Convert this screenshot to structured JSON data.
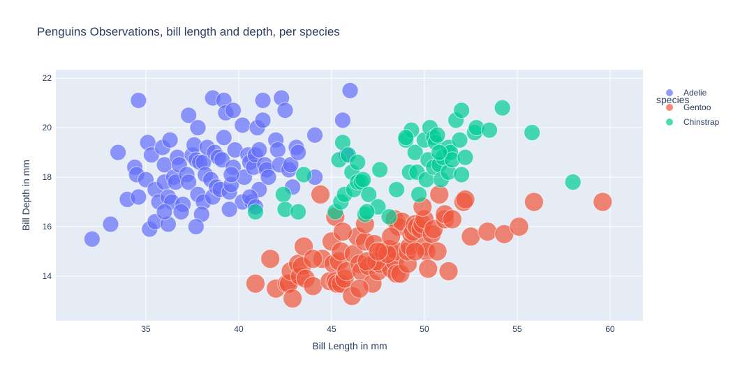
{
  "chart_data": {
    "type": "scatter",
    "title": "Penguins Observations, bill length and depth, per species",
    "xlabel": "Bill Length in mm",
    "ylabel": "Bill Depth in mm",
    "xlim": [
      30.15,
      61.77
    ],
    "ylim": [
      12.2,
      22.34
    ],
    "xticks": [
      35,
      40,
      45,
      50,
      55,
      60
    ],
    "yticks": [
      14,
      16,
      18,
      20,
      22
    ],
    "grid": true,
    "legend_title": "species",
    "legend_position": "right",
    "plot_bg": "#e5ecf6",
    "series": [
      {
        "name": "Adelie",
        "color": "#636efa",
        "typical_size": 3700,
        "points": [
          [
            32.1,
            15.5
          ],
          [
            33.1,
            16.1
          ],
          [
            33.5,
            19.0
          ],
          [
            34.0,
            17.1
          ],
          [
            34.4,
            18.4
          ],
          [
            34.5,
            18.1
          ],
          [
            34.6,
            21.1
          ],
          [
            34.6,
            17.2
          ],
          [
            35.0,
            17.9
          ],
          [
            35.1,
            19.4
          ],
          [
            35.2,
            15.9
          ],
          [
            35.3,
            18.9
          ],
          [
            35.5,
            16.2
          ],
          [
            35.5,
            17.5
          ],
          [
            35.7,
            17.0
          ],
          [
            35.9,
            19.2
          ],
          [
            36.0,
            18.5
          ],
          [
            36.0,
            17.8
          ],
          [
            36.2,
            16.1
          ],
          [
            36.2,
            17.2
          ],
          [
            36.3,
            19.5
          ],
          [
            36.4,
            17.0
          ],
          [
            36.5,
            18.0
          ],
          [
            36.6,
            17.8
          ],
          [
            36.7,
            18.8
          ],
          [
            36.8,
            18.5
          ],
          [
            37.0,
            16.9
          ],
          [
            37.2,
            18.1
          ],
          [
            37.3,
            20.5
          ],
          [
            37.3,
            17.8
          ],
          [
            37.5,
            18.9
          ],
          [
            37.6,
            19.3
          ],
          [
            37.7,
            18.7
          ],
          [
            37.8,
            17.3
          ],
          [
            37.8,
            20.0
          ],
          [
            37.9,
            18.6
          ],
          [
            38.1,
            18.6
          ],
          [
            38.1,
            17.0
          ],
          [
            38.2,
            18.1
          ],
          [
            38.3,
            19.2
          ],
          [
            38.5,
            17.9
          ],
          [
            38.6,
            21.2
          ],
          [
            38.6,
            17.2
          ],
          [
            38.7,
            19.0
          ],
          [
            38.8,
            17.6
          ],
          [
            38.9,
            18.8
          ],
          [
            39.0,
            17.5
          ],
          [
            39.1,
            18.7
          ],
          [
            39.2,
            19.6
          ],
          [
            39.2,
            21.1
          ],
          [
            39.3,
            20.6
          ],
          [
            39.5,
            17.4
          ],
          [
            39.6,
            17.7
          ],
          [
            39.7,
            18.4
          ],
          [
            39.7,
            20.7
          ],
          [
            39.8,
            19.1
          ],
          [
            40.2,
            17.0
          ],
          [
            40.2,
            20.1
          ],
          [
            40.3,
            18.0
          ],
          [
            40.5,
            18.9
          ],
          [
            40.6,
            18.6
          ],
          [
            40.7,
            17.0
          ],
          [
            40.8,
            18.4
          ],
          [
            40.9,
            18.9
          ],
          [
            41.0,
            20.0
          ],
          [
            41.1,
            19.1
          ],
          [
            41.1,
            17.5
          ],
          [
            41.3,
            21.1
          ],
          [
            41.3,
            20.3
          ],
          [
            41.4,
            18.5
          ],
          [
            41.5,
            18.3
          ],
          [
            41.6,
            18.0
          ],
          [
            42.0,
            19.5
          ],
          [
            42.1,
            19.1
          ],
          [
            42.2,
            18.5
          ],
          [
            42.3,
            21.2
          ],
          [
            42.5,
            20.7
          ],
          [
            42.7,
            18.3
          ],
          [
            42.8,
            18.5
          ],
          [
            42.9,
            17.6
          ],
          [
            43.1,
            19.2
          ],
          [
            43.2,
            19.0
          ],
          [
            44.1,
            19.7
          ],
          [
            44.1,
            18.0
          ],
          [
            45.8,
            18.9
          ],
          [
            46.0,
            21.5
          ],
          [
            45.6,
            20.3
          ],
          [
            36.9,
            16.6
          ],
          [
            38.0,
            16.5
          ],
          [
            40.6,
            17.2
          ],
          [
            39.6,
            18.1
          ],
          [
            36.0,
            16.6
          ],
          [
            37.7,
            16.0
          ],
          [
            39.5,
            16.7
          ],
          [
            40.9,
            16.8
          ]
        ]
      },
      {
        "name": "Gentoo",
        "color": "#ef553b",
        "typical_size": 5100,
        "points": [
          [
            40.9,
            13.7
          ],
          [
            41.7,
            14.7
          ],
          [
            42.0,
            13.5
          ],
          [
            42.6,
            13.7
          ],
          [
            42.7,
            13.7
          ],
          [
            42.8,
            14.2
          ],
          [
            42.9,
            13.1
          ],
          [
            43.2,
            14.5
          ],
          [
            43.3,
            14.0
          ],
          [
            43.4,
            14.4
          ],
          [
            43.5,
            15.2
          ],
          [
            43.6,
            13.9
          ],
          [
            44.0,
            13.6
          ],
          [
            44.4,
            17.3
          ],
          [
            44.5,
            14.7
          ],
          [
            44.9,
            13.8
          ],
          [
            45.0,
            15.4
          ],
          [
            45.1,
            14.5
          ],
          [
            45.2,
            13.8
          ],
          [
            45.2,
            16.4
          ],
          [
            45.3,
            13.7
          ],
          [
            45.4,
            14.6
          ],
          [
            45.5,
            13.7
          ],
          [
            45.5,
            15.0
          ],
          [
            45.7,
            13.9
          ],
          [
            45.8,
            14.2
          ],
          [
            46.1,
            13.2
          ],
          [
            46.2,
            14.9
          ],
          [
            46.4,
            15.6
          ],
          [
            46.5,
            14.5
          ],
          [
            46.6,
            14.2
          ],
          [
            46.8,
            15.4
          ],
          [
            46.8,
            16.1
          ],
          [
            47.0,
            14.4
          ],
          [
            47.2,
            13.7
          ],
          [
            47.3,
            15.3
          ],
          [
            47.5,
            14.2
          ],
          [
            47.6,
            14.5
          ],
          [
            47.7,
            15.0
          ],
          [
            47.8,
            15.0
          ],
          [
            48.1,
            15.1
          ],
          [
            48.2,
            14.3
          ],
          [
            48.4,
            14.6
          ],
          [
            48.4,
            16.3
          ],
          [
            48.5,
            14.1
          ],
          [
            48.5,
            15.0
          ],
          [
            48.6,
            16.0
          ],
          [
            48.7,
            14.1
          ],
          [
            48.8,
            16.2
          ],
          [
            49.1,
            14.5
          ],
          [
            49.1,
            15.0
          ],
          [
            49.2,
            15.2
          ],
          [
            49.3,
            15.7
          ],
          [
            49.4,
            15.8
          ],
          [
            49.5,
            16.1
          ],
          [
            49.6,
            16.0
          ],
          [
            49.8,
            15.9
          ],
          [
            49.9,
            16.1
          ],
          [
            50.0,
            15.2
          ],
          [
            50.0,
            16.3
          ],
          [
            50.1,
            15.0
          ],
          [
            50.2,
            14.3
          ],
          [
            50.4,
            15.7
          ],
          [
            50.5,
            15.9
          ],
          [
            50.7,
            15.0
          ],
          [
            50.8,
            17.3
          ],
          [
            51.1,
            16.3
          ],
          [
            51.1,
            16.5
          ],
          [
            51.3,
            14.2
          ],
          [
            51.5,
            16.3
          ],
          [
            52.1,
            17.0
          ],
          [
            52.2,
            17.1
          ],
          [
            52.5,
            15.6
          ],
          [
            53.4,
            15.8
          ],
          [
            54.3,
            15.7
          ],
          [
            55.1,
            16.0
          ],
          [
            55.9,
            17.0
          ],
          [
            59.6,
            17.0
          ],
          [
            46.5,
            13.5
          ],
          [
            47.4,
            14.6
          ],
          [
            48.0,
            14.9
          ],
          [
            49.5,
            15.0
          ],
          [
            44.0,
            14.7
          ],
          [
            45.6,
            15.8
          ],
          [
            46.9,
            14.6
          ],
          [
            47.5,
            15.0
          ],
          [
            49.9,
            16.8
          ],
          [
            48.2,
            15.6
          ]
        ]
      },
      {
        "name": "Chinstrap",
        "color": "#00cc96",
        "typical_size": 3700,
        "points": [
          [
            40.9,
            16.6
          ],
          [
            42.4,
            17.3
          ],
          [
            42.5,
            16.7
          ],
          [
            43.2,
            16.6
          ],
          [
            43.5,
            18.1
          ],
          [
            45.2,
            16.6
          ],
          [
            45.4,
            18.7
          ],
          [
            45.5,
            17.0
          ],
          [
            45.6,
            19.4
          ],
          [
            45.7,
            17.3
          ],
          [
            45.9,
            18.9
          ],
          [
            46.1,
            18.2
          ],
          [
            46.2,
            17.5
          ],
          [
            46.4,
            18.6
          ],
          [
            46.4,
            17.8
          ],
          [
            46.6,
            17.8
          ],
          [
            46.7,
            17.9
          ],
          [
            46.8,
            16.5
          ],
          [
            47.0,
            17.3
          ],
          [
            47.5,
            16.8
          ],
          [
            47.6,
            18.3
          ],
          [
            48.1,
            16.4
          ],
          [
            48.5,
            17.5
          ],
          [
            49.0,
            19.5
          ],
          [
            49.2,
            18.2
          ],
          [
            49.3,
            19.9
          ],
          [
            49.5,
            19.0
          ],
          [
            49.6,
            18.2
          ],
          [
            49.7,
            17.3
          ],
          [
            50.0,
            19.5
          ],
          [
            50.1,
            17.9
          ],
          [
            50.2,
            18.7
          ],
          [
            50.3,
            20.0
          ],
          [
            50.5,
            18.4
          ],
          [
            50.5,
            19.6
          ],
          [
            50.6,
            19.4
          ],
          [
            50.7,
            19.7
          ],
          [
            50.8,
            18.5
          ],
          [
            50.9,
            17.9
          ],
          [
            51.0,
            18.8
          ],
          [
            51.3,
            19.2
          ],
          [
            51.3,
            18.2
          ],
          [
            51.4,
            19.0
          ],
          [
            51.5,
            18.7
          ],
          [
            51.7,
            20.3
          ],
          [
            51.9,
            19.5
          ],
          [
            52.0,
            20.7
          ],
          [
            52.0,
            18.1
          ],
          [
            52.2,
            18.8
          ],
          [
            52.7,
            19.8
          ],
          [
            52.8,
            20.0
          ],
          [
            53.5,
            19.9
          ],
          [
            54.2,
            20.8
          ],
          [
            55.8,
            19.8
          ],
          [
            58.0,
            17.8
          ],
          [
            50.8,
            19.0
          ],
          [
            49.0,
            19.6
          ],
          [
            46.9,
            16.6
          ]
        ]
      }
    ]
  }
}
